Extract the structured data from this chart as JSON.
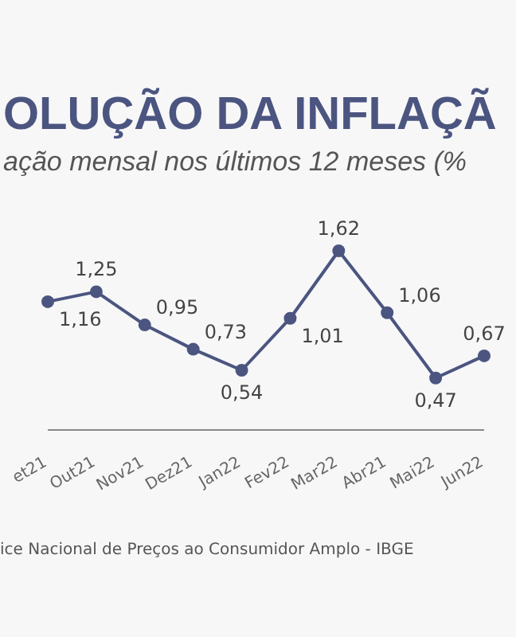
{
  "chart_data": {
    "type": "line",
    "title": "OLUÇÃO DA INFLAÇÃ",
    "subtitle": "ação mensal nos últimos 12 meses (%",
    "annotations": [
      "ice Nacional de Preços ao Consumidor Amplo - IBGE"
    ],
    "categories": [
      "et21",
      "Out21",
      "Nov21",
      "Dez21",
      "Jan22",
      "Fev22",
      "Mar22",
      "Abr21",
      "Mai22",
      "Jun22"
    ],
    "series": [
      {
        "color": "#4b5580",
        "values": [
          1.16,
          1.25,
          0.95,
          0.73,
          0.54,
          1.01,
          1.62,
          1.06,
          0.47,
          0.67
        ],
        "value_labels": [
          "1,16",
          "1,25",
          "0,95",
          "0,73",
          "0,54",
          "1,01",
          "1,62",
          "1,06",
          "0,47",
          "0,67"
        ]
      }
    ],
    "marker": "circle",
    "grid": false,
    "legend": false
  }
}
